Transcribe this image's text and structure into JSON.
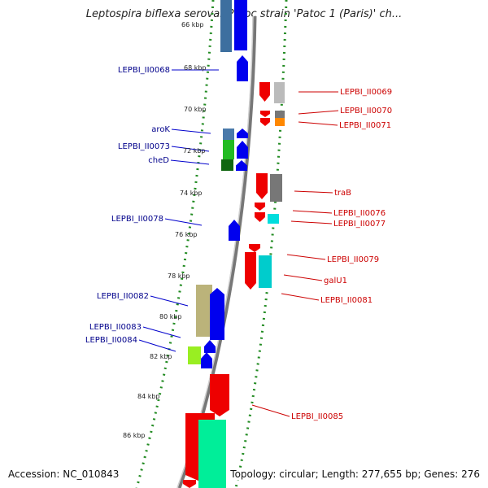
{
  "header": {
    "title": "Leptospira biflexa serovar Patoc strain 'Patoc 1 (Paris)' ch..."
  },
  "footer": {
    "accession": "Accession: NC_010843",
    "topology": "Topology: circular; Length: 277,655 bp; Genes: 276"
  },
  "ticks": [
    "66 kbp",
    "68 kbp",
    "70 kbp",
    "72 kbp",
    "74 kbp",
    "76 kbp",
    "78 kbp",
    "80 kbp",
    "82 kbp",
    "84 kbp",
    "86 kbp"
  ],
  "left_labels": [
    "LEPBI_II0068",
    "aroK",
    "LEPBI_II0073",
    "cheD",
    "LEPBI_II0078",
    "LEPBI_II0082",
    "LEPBI_II0083",
    "LEPBI_II0084"
  ],
  "right_labels": [
    "LEPBI_II0069",
    "LEPBI_II0070",
    "LEPBI_II0071",
    "traB",
    "LEPBI_II0076",
    "LEPBI_II0077",
    "LEPBI_II0079",
    "galU1",
    "LEPBI_II0081",
    "LEPBI_II0085"
  ],
  "colors": {
    "forward_strand": "#0000ee",
    "reverse_strand": "#ee0000",
    "backbone": "#888888",
    "ruler_dots": "#228b22",
    "left_label_text": "#00008b",
    "right_label_text": "#cc0000"
  }
}
